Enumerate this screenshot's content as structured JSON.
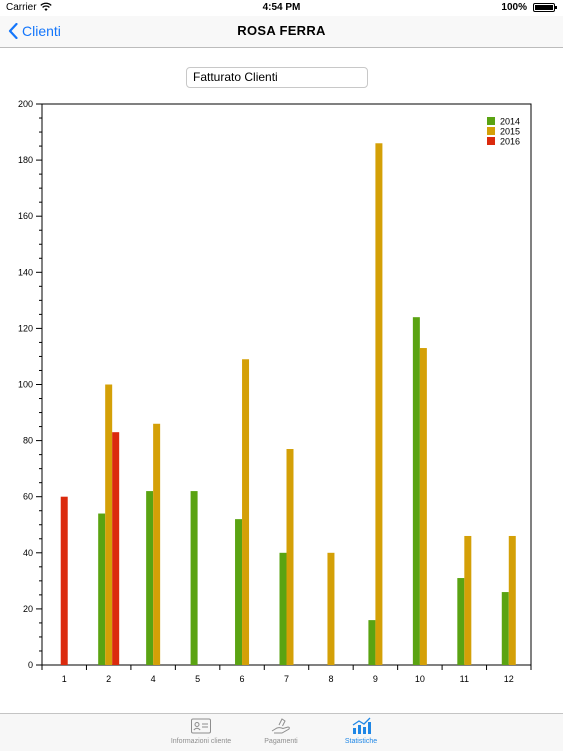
{
  "status_bar": {
    "carrier": "Carrier",
    "time": "4:54 PM",
    "battery": "100%"
  },
  "nav": {
    "back_label": "Clienti",
    "title": "ROSA FERRA"
  },
  "selector": {
    "value": "Fatturato Clienti"
  },
  "chart_data": {
    "type": "bar",
    "categories": [
      "1",
      "2",
      "4",
      "5",
      "6",
      "7",
      "8",
      "9",
      "10",
      "11",
      "12"
    ],
    "series": [
      {
        "name": "2014",
        "color": "#5aa312",
        "values": [
          null,
          54,
          62,
          62,
          52,
          40,
          null,
          16,
          124,
          31,
          26
        ]
      },
      {
        "name": "2015",
        "color": "#d4a007",
        "values": [
          null,
          100,
          86,
          0,
          109,
          77,
          40,
          186,
          113,
          46,
          46
        ]
      },
      {
        "name": "2016",
        "color": "#db2a0d",
        "values": [
          60,
          83,
          null,
          null,
          null,
          null,
          null,
          null,
          null,
          null,
          null
        ]
      }
    ],
    "ylim": [
      0,
      200
    ],
    "yticks": [
      "0",
      "20",
      "40",
      "60",
      "80",
      "100",
      "120",
      "140",
      "160",
      "180",
      "200"
    ],
    "legend_position": "top-right"
  },
  "tabs": [
    {
      "label": "Informazioni cliente",
      "icon": "contact-card-icon",
      "active": false
    },
    {
      "label": "Pagamenti",
      "icon": "hand-payment-icon",
      "active": false
    },
    {
      "label": "Statistiche",
      "icon": "bar-chart-icon",
      "active": true
    }
  ]
}
